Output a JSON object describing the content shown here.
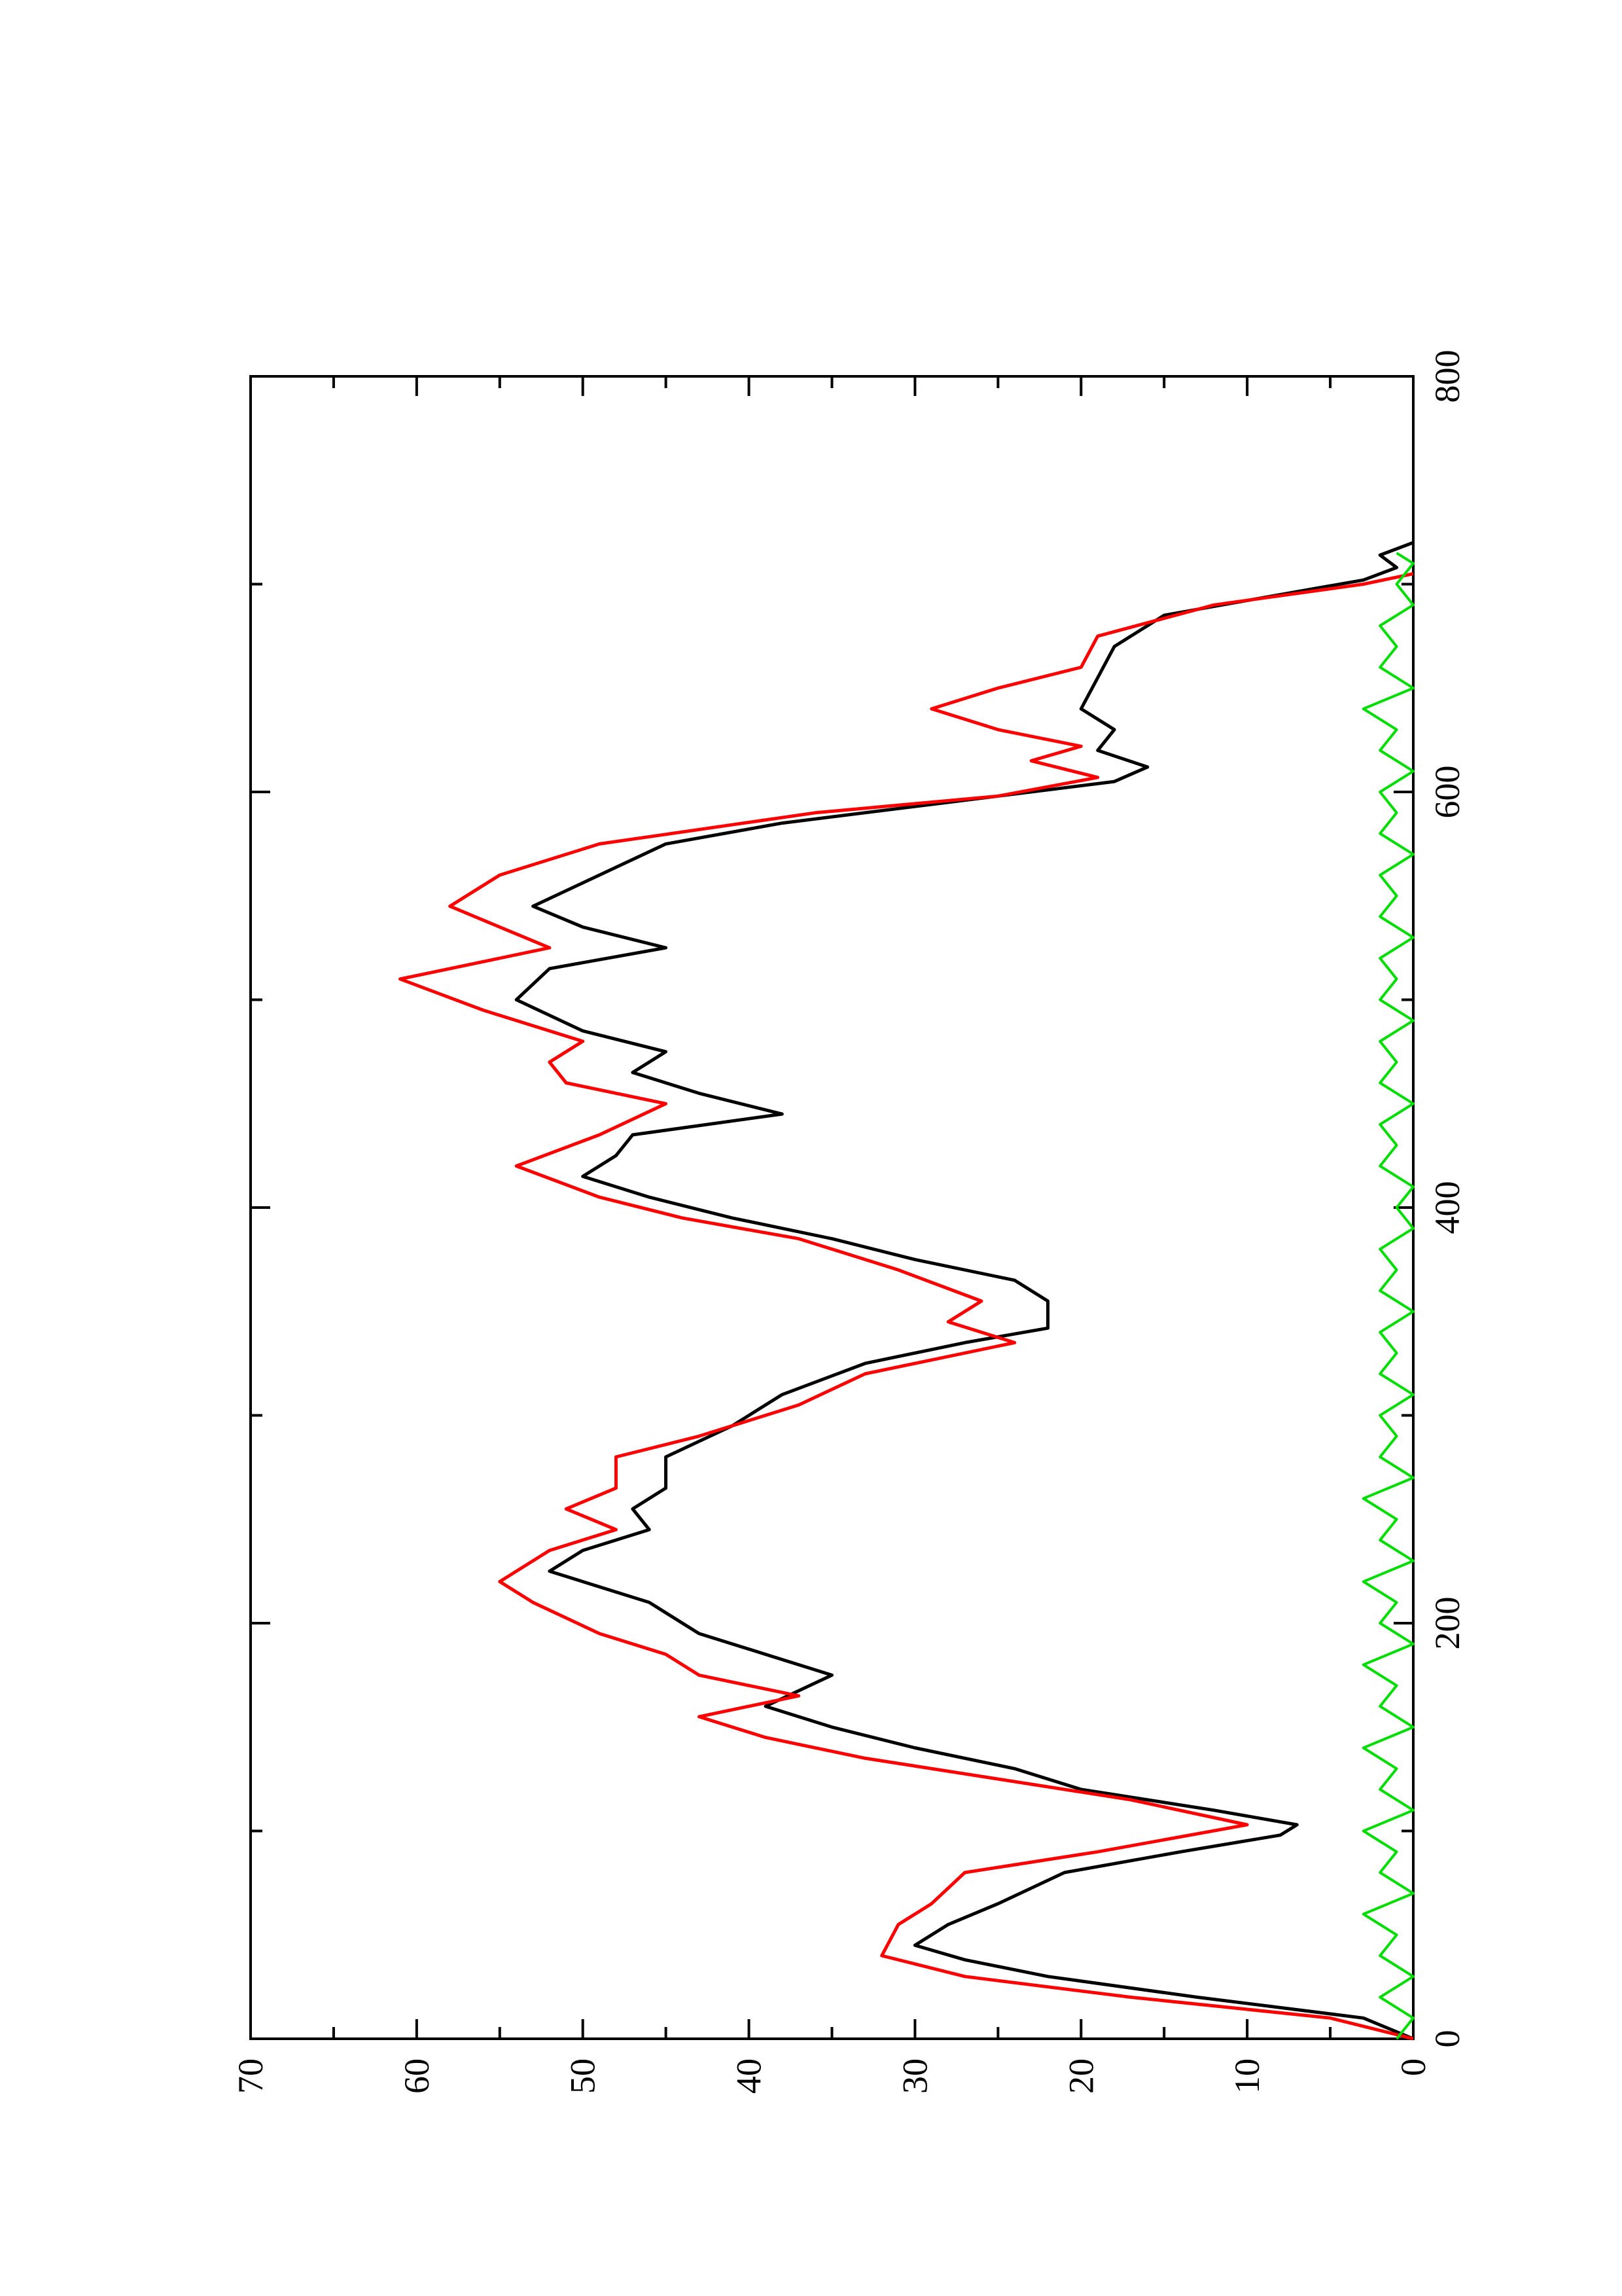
{
  "chart_data": {
    "type": "line",
    "orientation": "rotated-90-ccw",
    "title": "",
    "xlabel": "",
    "ylabel": "",
    "xlim": [
      0,
      800
    ],
    "ylim": [
      0,
      70
    ],
    "x_ticks": [
      "0",
      "200",
      "400",
      "600",
      "800"
    ],
    "y_ticks": [
      "0",
      "10",
      "20",
      "30",
      "40",
      "50",
      "60",
      "70"
    ],
    "grid": false,
    "legend": "none",
    "series": [
      {
        "color": "#000000",
        "points": [
          [
            0,
            0
          ],
          [
            10,
            3
          ],
          [
            20,
            13
          ],
          [
            30,
            22
          ],
          [
            38,
            27
          ],
          [
            45,
            30
          ],
          [
            55,
            28
          ],
          [
            65,
            25
          ],
          [
            80,
            21
          ],
          [
            90,
            14
          ],
          [
            98,
            8
          ],
          [
            103,
            7
          ],
          [
            110,
            12
          ],
          [
            120,
            20
          ],
          [
            130,
            24
          ],
          [
            140,
            30
          ],
          [
            150,
            35
          ],
          [
            160,
            39
          ],
          [
            175,
            35
          ],
          [
            185,
            39
          ],
          [
            195,
            43
          ],
          [
            210,
            46
          ],
          [
            225,
            52
          ],
          [
            235,
            50
          ],
          [
            245,
            46
          ],
          [
            255,
            47
          ],
          [
            265,
            45
          ],
          [
            280,
            45
          ],
          [
            295,
            41
          ],
          [
            310,
            38
          ],
          [
            325,
            33
          ],
          [
            335,
            27
          ],
          [
            342,
            22
          ],
          [
            355,
            22
          ],
          [
            365,
            24
          ],
          [
            375,
            30
          ],
          [
            385,
            35
          ],
          [
            395,
            41
          ],
          [
            405,
            46
          ],
          [
            415,
            50
          ],
          [
            425,
            48
          ],
          [
            435,
            47
          ],
          [
            445,
            38
          ],
          [
            455,
            43
          ],
          [
            465,
            47
          ],
          [
            475,
            45
          ],
          [
            485,
            50
          ],
          [
            500,
            54
          ],
          [
            515,
            52
          ],
          [
            525,
            45
          ],
          [
            535,
            50
          ],
          [
            545,
            53
          ],
          [
            560,
            49
          ],
          [
            575,
            45
          ],
          [
            585,
            38
          ],
          [
            595,
            28
          ],
          [
            605,
            18
          ],
          [
            612,
            16
          ],
          [
            620,
            19
          ],
          [
            630,
            18
          ],
          [
            640,
            20
          ],
          [
            655,
            19
          ],
          [
            670,
            18
          ],
          [
            685,
            15
          ],
          [
            695,
            8
          ],
          [
            702,
            3
          ],
          [
            708,
            1
          ],
          [
            714,
            2
          ],
          [
            720,
            0
          ]
        ]
      },
      {
        "color": "#ff0000",
        "points": [
          [
            0,
            0
          ],
          [
            10,
            5
          ],
          [
            20,
            17
          ],
          [
            30,
            27
          ],
          [
            40,
            32
          ],
          [
            55,
            31
          ],
          [
            65,
            29
          ],
          [
            80,
            27
          ],
          [
            90,
            19
          ],
          [
            103,
            10
          ],
          [
            115,
            17
          ],
          [
            125,
            25
          ],
          [
            135,
            33
          ],
          [
            145,
            39
          ],
          [
            155,
            43
          ],
          [
            165,
            37
          ],
          [
            175,
            43
          ],
          [
            185,
            45
          ],
          [
            195,
            49
          ],
          [
            210,
            53
          ],
          [
            220,
            55
          ],
          [
            235,
            52
          ],
          [
            245,
            48
          ],
          [
            255,
            51
          ],
          [
            265,
            48
          ],
          [
            280,
            48
          ],
          [
            290,
            43
          ],
          [
            305,
            37
          ],
          [
            320,
            33
          ],
          [
            335,
            24
          ],
          [
            345,
            28
          ],
          [
            355,
            26
          ],
          [
            370,
            31
          ],
          [
            385,
            37
          ],
          [
            395,
            44
          ],
          [
            405,
            49
          ],
          [
            420,
            54
          ],
          [
            435,
            49
          ],
          [
            450,
            45
          ],
          [
            460,
            51
          ],
          [
            470,
            52
          ],
          [
            480,
            50
          ],
          [
            495,
            56
          ],
          [
            510,
            61
          ],
          [
            525,
            52
          ],
          [
            535,
            55
          ],
          [
            545,
            58
          ],
          [
            560,
            55
          ],
          [
            575,
            49
          ],
          [
            590,
            36
          ],
          [
            598,
            25
          ],
          [
            607,
            19
          ],
          [
            615,
            23
          ],
          [
            622,
            20
          ],
          [
            630,
            25
          ],
          [
            640,
            29
          ],
          [
            650,
            25
          ],
          [
            660,
            20
          ],
          [
            675,
            19
          ],
          [
            690,
            12
          ],
          [
            700,
            3
          ],
          [
            705,
            0
          ]
        ]
      },
      {
        "color": "#00dd00",
        "points": [
          [
            0,
            1
          ],
          [
            10,
            0
          ],
          [
            20,
            2
          ],
          [
            30,
            0
          ],
          [
            40,
            2
          ],
          [
            50,
            1
          ],
          [
            60,
            3
          ],
          [
            70,
            0
          ],
          [
            80,
            2
          ],
          [
            90,
            1
          ],
          [
            100,
            3
          ],
          [
            110,
            0
          ],
          [
            120,
            2
          ],
          [
            130,
            1
          ],
          [
            140,
            3
          ],
          [
            150,
            0
          ],
          [
            160,
            2
          ],
          [
            170,
            1
          ],
          [
            180,
            3
          ],
          [
            190,
            0
          ],
          [
            200,
            2
          ],
          [
            210,
            1
          ],
          [
            220,
            3
          ],
          [
            230,
            0
          ],
          [
            240,
            2
          ],
          [
            250,
            1
          ],
          [
            260,
            3
          ],
          [
            270,
            0
          ],
          [
            280,
            2
          ],
          [
            290,
            1
          ],
          [
            300,
            2
          ],
          [
            310,
            0
          ],
          [
            320,
            2
          ],
          [
            330,
            1
          ],
          [
            340,
            2
          ],
          [
            350,
            0
          ],
          [
            360,
            2
          ],
          [
            370,
            1
          ],
          [
            380,
            2
          ],
          [
            390,
            0
          ],
          [
            400,
            1
          ],
          [
            410,
            0
          ],
          [
            420,
            2
          ],
          [
            430,
            1
          ],
          [
            440,
            2
          ],
          [
            450,
            0
          ],
          [
            460,
            2
          ],
          [
            470,
            1
          ],
          [
            480,
            2
          ],
          [
            490,
            0
          ],
          [
            500,
            2
          ],
          [
            510,
            1
          ],
          [
            520,
            2
          ],
          [
            530,
            0
          ],
          [
            540,
            2
          ],
          [
            550,
            1
          ],
          [
            560,
            2
          ],
          [
            570,
            0
          ],
          [
            580,
            2
          ],
          [
            590,
            1
          ],
          [
            600,
            2
          ],
          [
            610,
            0
          ],
          [
            620,
            2
          ],
          [
            630,
            1
          ],
          [
            640,
            3
          ],
          [
            650,
            0
          ],
          [
            660,
            2
          ],
          [
            670,
            1
          ],
          [
            680,
            2
          ],
          [
            690,
            0
          ],
          [
            700,
            1
          ],
          [
            710,
            0
          ],
          [
            715,
            1
          ]
        ]
      }
    ]
  }
}
